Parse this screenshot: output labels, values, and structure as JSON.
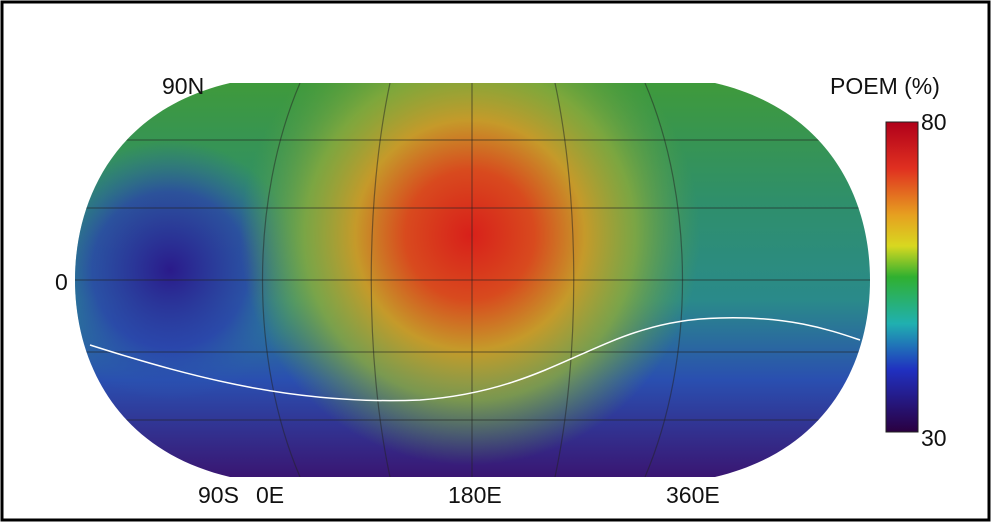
{
  "map": {
    "latitude_labels": [
      "90N",
      "0",
      "90S"
    ],
    "longitude_labels": [
      "0E",
      "180E",
      "360E"
    ]
  },
  "colorbar": {
    "title": "POEM (%)",
    "max": 80,
    "min": 30
  }
}
